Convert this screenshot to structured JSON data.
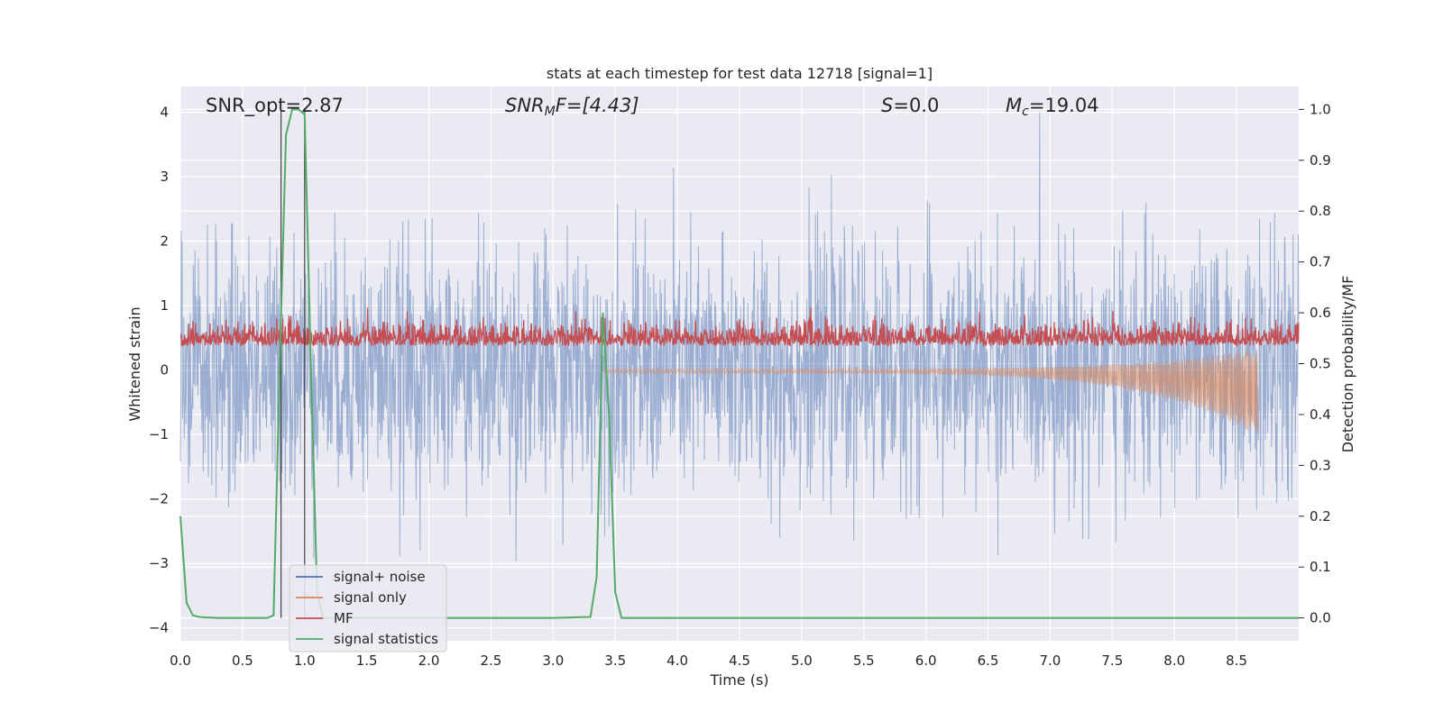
{
  "chart_data": {
    "type": "line",
    "title": "stats at each timestep for test data 12718 [signal=1]",
    "xlabel": "Time (s)",
    "ylabel": "Whitened strain",
    "ylabel_right": "Detection probability/MF",
    "xlim": [
      0.0,
      9.0
    ],
    "ylim": [
      -4.2,
      4.4
    ],
    "ylim_right": [
      -0.045,
      1.045
    ],
    "grid": true,
    "x_ticks": [
      "0.0",
      "0.5",
      "1.0",
      "1.5",
      "2.0",
      "2.5",
      "3.0",
      "3.5",
      "4.0",
      "4.5",
      "5.0",
      "5.5",
      "6.0",
      "6.5",
      "7.0",
      "7.5",
      "8.0",
      "8.5"
    ],
    "y_ticks": [
      "4",
      "3",
      "2",
      "1",
      "0",
      "−1",
      "−2",
      "−3",
      "−4"
    ],
    "y_ticks_right": [
      "1.0",
      "0.9",
      "0.8",
      "0.7",
      "0.6",
      "0.5",
      "0.4",
      "0.3",
      "0.2",
      "0.1",
      "0.0"
    ],
    "annotations": {
      "snr_opt": "SNR_opt=2.87",
      "snr_mf_main": "SNR",
      "snr_mf_sub": "M",
      "snr_mf_rest": "F=[4.43]",
      "s_main": "S",
      "s_rest": "=0.0",
      "mc_main": "M",
      "mc_sub": "c",
      "mc_rest": "=19.04"
    },
    "vertical_markers": [
      0.81,
      1.0
    ],
    "legend": {
      "placement": "lower-left",
      "entries": [
        {
          "label": "signal+ noise",
          "color": "#4c72b0"
        },
        {
          "label": "signal only",
          "color": "#dd8452"
        },
        {
          "label": "MF",
          "color": "#c44e52"
        },
        {
          "label": "signal statistics",
          "color": "#55a868"
        }
      ]
    },
    "series": [
      {
        "name": "signal+ noise",
        "color": "#4c72b0",
        "axis": "left",
        "style": "dense-noise",
        "approx_range": [
          -3.7,
          4.0
        ]
      },
      {
        "name": "signal only",
        "color": "#dd8452",
        "axis": "left",
        "style": "chirp",
        "start": 3.4,
        "end": 8.67,
        "peak": -0.65
      },
      {
        "name": "MF",
        "color": "#c44e52",
        "axis": "right",
        "style": "dense-band",
        "approx_range": [
          0.49,
          0.61
        ]
      },
      {
        "name": "signal statistics",
        "color": "#55a868",
        "axis": "right",
        "x": [
          0.0,
          0.05,
          0.1,
          0.15,
          0.2,
          0.3,
          0.5,
          0.7,
          0.75,
          0.8,
          0.85,
          0.9,
          0.95,
          1.0,
          1.05,
          1.1,
          1.15,
          1.2,
          1.3,
          2.0,
          3.0,
          3.3,
          3.35,
          3.4,
          3.45,
          3.5,
          3.55,
          3.6,
          4.0,
          5.0,
          6.0,
          7.0,
          8.0,
          9.0
        ],
        "y": [
          0.2,
          0.03,
          0.005,
          0.002,
          0.001,
          0.0,
          0.0,
          0.0,
          0.005,
          0.5,
          0.95,
          1.0,
          1.0,
          0.99,
          0.5,
          0.05,
          0.0,
          0.0,
          0.0,
          0.0,
          0.0,
          0.002,
          0.08,
          0.6,
          0.4,
          0.05,
          0.0,
          0.0,
          0.0,
          0.0,
          0.0,
          0.0,
          0.0,
          0.0
        ]
      }
    ]
  }
}
